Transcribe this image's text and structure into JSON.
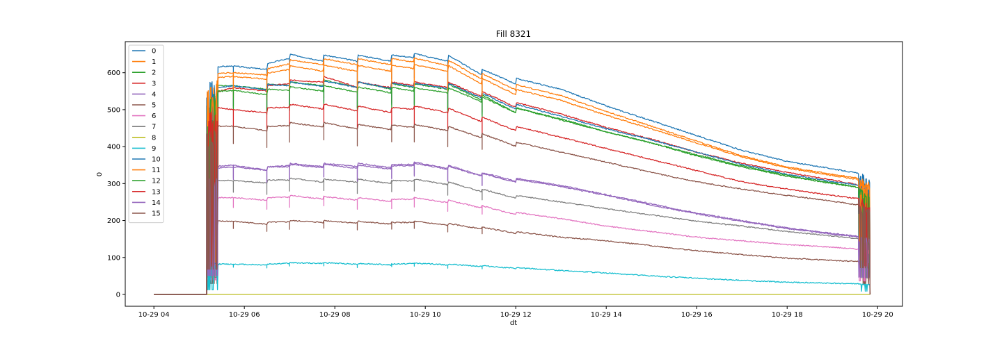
{
  "chart_data": {
    "type": "line",
    "title": "Fill 8321",
    "xlabel": "dt",
    "ylabel": "0",
    "x_ticks": [
      "10-29 04",
      "10-29 06",
      "10-29 08",
      "10-29 10",
      "10-29 12",
      "10-29 14",
      "10-29 16",
      "10-29 18",
      "10-29 20"
    ],
    "y_ticks": [
      "0",
      "100",
      "200",
      "300",
      "400",
      "500",
      "600"
    ],
    "xlim": [
      "2023-10-29 03:22",
      "2023-10-29 20:33"
    ],
    "ylim": [
      -32,
      684
    ],
    "grid": false,
    "legend_position": "top-left",
    "x_span": [
      "2023-10-29 04:00",
      "2023-10-29 19:50"
    ],
    "beam_on": "2023-10-29 05:10",
    "ramp_end": "2023-10-29 05:25",
    "dump_start": "2023-10-29 19:35",
    "refill_times": [
      "05:45",
      "06:30",
      "07:00",
      "07:45",
      "08:30",
      "09:15",
      "09:45",
      "10:30",
      "11:15"
    ],
    "series": [
      {
        "name": "0",
        "color": "#1f77b4",
        "x": [
          "05:10",
          "05:45",
          "06:30",
          "07:00",
          "07:45",
          "08:30",
          "09:15",
          "09:45",
          "10:30",
          "11:15",
          "12:00",
          "13:00",
          "14:00",
          "15:00",
          "16:00",
          "17:00",
          "18:00",
          "19:00",
          "19:50"
        ],
        "y": [
          615,
          618,
          625,
          650,
          648,
          648,
          648,
          652,
          648,
          610,
          585,
          555,
          510,
          470,
          430,
          390,
          360,
          340,
          322
        ]
      },
      {
        "name": "1",
        "color": "#ff7f0e",
        "x": [
          "05:10",
          "05:45",
          "06:30",
          "07:00",
          "07:45",
          "08:30",
          "09:15",
          "09:45",
          "10:30",
          "11:15",
          "12:00",
          "13:00",
          "14:00",
          "15:00",
          "16:00",
          "17:00",
          "18:00",
          "19:00",
          "19:50"
        ],
        "y": [
          598,
          600,
          610,
          635,
          638,
          638,
          638,
          640,
          635,
          598,
          568,
          538,
          495,
          455,
          415,
          375,
          345,
          325,
          310
        ]
      },
      {
        "name": "2",
        "color": "#2ca02c",
        "x": [
          "05:10",
          "05:45",
          "06:30",
          "07:00",
          "07:45",
          "08:30",
          "09:15",
          "09:45",
          "10:30",
          "11:15",
          "12:00",
          "13:00",
          "14:00",
          "15:00",
          "16:00",
          "17:00",
          "18:00",
          "19:00",
          "19:50"
        ],
        "y": [
          565,
          565,
          570,
          575,
          580,
          575,
          570,
          570,
          570,
          540,
          505,
          475,
          440,
          410,
          375,
          345,
          320,
          300,
          285
        ]
      },
      {
        "name": "3",
        "color": "#d62728",
        "x": [
          "05:10",
          "05:45",
          "06:30",
          "07:00",
          "07:45",
          "08:30",
          "09:15",
          "09:45",
          "10:30",
          "11:15",
          "12:00",
          "13:00",
          "14:00",
          "15:00",
          "16:00",
          "17:00",
          "18:00",
          "19:00",
          "19:50"
        ],
        "y": [
          540,
          560,
          565,
          580,
          590,
          575,
          575,
          575,
          575,
          550,
          520,
          488,
          452,
          420,
          385,
          355,
          330,
          310,
          290
        ]
      },
      {
        "name": "4",
        "color": "#9467bd",
        "x": [
          "05:10",
          "05:45",
          "06:30",
          "07:00",
          "07:45",
          "08:30",
          "09:15",
          "09:45",
          "10:30",
          "11:15",
          "12:00",
          "13:00",
          "14:00",
          "15:00",
          "16:00",
          "17:00",
          "18:00",
          "19:00",
          "19:50"
        ],
        "y": [
          345,
          350,
          345,
          355,
          355,
          355,
          352,
          358,
          350,
          330,
          315,
          295,
          270,
          245,
          220,
          200,
          180,
          165,
          155
        ]
      },
      {
        "name": "5",
        "color": "#8c564b",
        "x": [
          "05:10",
          "05:45",
          "06:30",
          "07:00",
          "07:45",
          "08:30",
          "09:15",
          "09:45",
          "10:30",
          "11:15",
          "12:00",
          "13:00",
          "14:00",
          "15:00",
          "16:00",
          "17:00",
          "18:00",
          "19:00",
          "19:50"
        ],
        "y": [
          198,
          198,
          195,
          200,
          200,
          198,
          195,
          198,
          192,
          182,
          170,
          155,
          145,
          132,
          118,
          108,
          98,
          92,
          88
        ]
      },
      {
        "name": "6",
        "color": "#e377c2",
        "x": [
          "05:10",
          "05:45",
          "06:30",
          "07:00",
          "07:45",
          "08:30",
          "09:15",
          "09:45",
          "10:30",
          "11:15",
          "12:00",
          "13:00",
          "14:00",
          "15:00",
          "16:00",
          "17:00",
          "18:00",
          "19:00",
          "19:50"
        ],
        "y": [
          262,
          262,
          262,
          268,
          265,
          262,
          258,
          262,
          255,
          240,
          222,
          205,
          185,
          170,
          155,
          145,
          135,
          128,
          120
        ]
      },
      {
        "name": "7",
        "color": "#7f7f7f",
        "x": [
          "05:10",
          "05:45",
          "06:30",
          "07:00",
          "07:45",
          "08:30",
          "09:15",
          "09:45",
          "10:30",
          "11:15",
          "12:00",
          "13:00",
          "14:00",
          "15:00",
          "16:00",
          "17:00",
          "18:00",
          "19:00",
          "19:50"
        ],
        "y": [
          308,
          308,
          310,
          315,
          312,
          312,
          308,
          312,
          305,
          285,
          268,
          250,
          232,
          215,
          198,
          185,
          170,
          158,
          148
        ]
      },
      {
        "name": "8",
        "color": "#bcbd22",
        "x": [
          "05:10",
          "05:45",
          "06:30",
          "07:00",
          "07:45",
          "08:30",
          "09:15",
          "09:45",
          "10:30",
          "11:15",
          "12:00",
          "13:00",
          "14:00",
          "15:00",
          "16:00",
          "17:00",
          "18:00",
          "19:00",
          "19:50"
        ],
        "y": [
          0,
          0,
          0,
          0,
          0,
          0,
          0,
          0,
          0,
          0,
          0,
          0,
          0,
          0,
          0,
          0,
          0,
          0,
          0
        ]
      },
      {
        "name": "9",
        "color": "#17becf",
        "x": [
          "05:10",
          "05:45",
          "06:30",
          "07:00",
          "07:45",
          "08:30",
          "09:15",
          "09:45",
          "10:30",
          "11:15",
          "12:00",
          "13:00",
          "14:00",
          "15:00",
          "16:00",
          "17:00",
          "18:00",
          "19:00",
          "19:50"
        ],
        "y": [
          82,
          82,
          82,
          86,
          86,
          84,
          82,
          85,
          82,
          78,
          72,
          65,
          58,
          50,
          44,
          38,
          33,
          30,
          28
        ]
      },
      {
        "name": "10",
        "color": "#1f77b4",
        "x": [
          "05:10",
          "05:45",
          "06:30",
          "07:00",
          "07:45",
          "08:30",
          "09:15",
          "09:45",
          "10:30",
          "11:15",
          "12:00",
          "13:00",
          "14:00",
          "15:00",
          "16:00",
          "17:00",
          "18:00",
          "19:00",
          "19:50"
        ],
        "y": [
          555,
          565,
          568,
          575,
          578,
          575,
          572,
          572,
          572,
          545,
          515,
          482,
          448,
          418,
          385,
          352,
          325,
          305,
          292
        ]
      },
      {
        "name": "11",
        "color": "#ff7f0e",
        "x": [
          "05:10",
          "05:45",
          "06:30",
          "07:00",
          "07:45",
          "08:30",
          "09:15",
          "09:45",
          "10:30",
          "11:15",
          "12:00",
          "13:00",
          "14:00",
          "15:00",
          "16:00",
          "17:00",
          "18:00",
          "19:00",
          "19:50"
        ],
        "y": [
          585,
          590,
          598,
          620,
          620,
          620,
          620,
          622,
          620,
          585,
          555,
          525,
          485,
          448,
          410,
          372,
          342,
          322,
          305
        ]
      },
      {
        "name": "12",
        "color": "#2ca02c",
        "x": [
          "05:10",
          "05:45",
          "06:30",
          "07:00",
          "07:45",
          "08:30",
          "09:15",
          "09:45",
          "10:30",
          "11:15",
          "12:00",
          "13:00",
          "14:00",
          "15:00",
          "16:00",
          "17:00",
          "18:00",
          "19:00",
          "19:50"
        ],
        "y": [
          548,
          552,
          555,
          562,
          565,
          562,
          560,
          560,
          560,
          535,
          505,
          472,
          440,
          410,
          378,
          348,
          322,
          302,
          284
        ]
      },
      {
        "name": "13",
        "color": "#d62728",
        "x": [
          "05:10",
          "05:45",
          "06:30",
          "07:00",
          "07:45",
          "08:30",
          "09:15",
          "09:45",
          "10:30",
          "11:15",
          "12:00",
          "13:00",
          "14:00",
          "15:00",
          "16:00",
          "17:00",
          "18:00",
          "19:00",
          "19:50"
        ],
        "y": [
          510,
          500,
          505,
          515,
          515,
          510,
          505,
          510,
          505,
          480,
          455,
          425,
          395,
          365,
          335,
          305,
          285,
          268,
          255
        ]
      },
      {
        "name": "14",
        "color": "#9467bd",
        "x": [
          "05:10",
          "05:45",
          "06:30",
          "07:00",
          "07:45",
          "08:30",
          "09:15",
          "09:45",
          "10:30",
          "11:15",
          "12:00",
          "13:00",
          "14:00",
          "15:00",
          "16:00",
          "17:00",
          "18:00",
          "19:00",
          "19:50"
        ],
        "y": [
          340,
          345,
          345,
          352,
          352,
          350,
          348,
          355,
          348,
          328,
          312,
          292,
          268,
          242,
          218,
          198,
          178,
          163,
          152
        ]
      },
      {
        "name": "15",
        "color": "#8c564b",
        "x": [
          "05:10",
          "05:45",
          "06:30",
          "07:00",
          "07:45",
          "08:30",
          "09:15",
          "09:45",
          "10:30",
          "11:15",
          "12:00",
          "13:00",
          "14:00",
          "15:00",
          "16:00",
          "17:00",
          "18:00",
          "19:00",
          "19:50"
        ],
        "y": [
          455,
          455,
          455,
          465,
          465,
          460,
          458,
          460,
          455,
          435,
          412,
          385,
          358,
          330,
          305,
          285,
          268,
          252,
          238
        ]
      }
    ]
  }
}
